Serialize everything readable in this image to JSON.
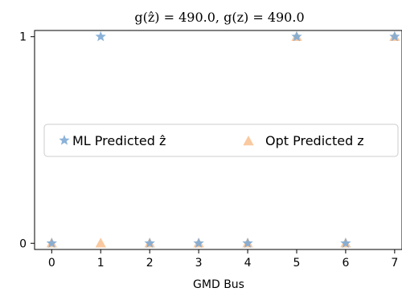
{
  "chart_data": {
    "type": "scatter",
    "title": "g(ẑ) = 490.0,    g(z) = 490.0",
    "xlabel": "GMD Bus",
    "ylabel": "",
    "xlim": [
      -0.35,
      7.15
    ],
    "ylim": [
      -0.03,
      1.03
    ],
    "xticks": [
      "0",
      "1",
      "2",
      "3",
      "4",
      "5",
      "6",
      "7"
    ],
    "yticks": [
      "0",
      "1"
    ],
    "grid": false,
    "legend_position": "center",
    "series": [
      {
        "name": "ML Predicted ẑ",
        "marker": "star",
        "color": "#7eaad4",
        "x": [
          0,
          1,
          2,
          3,
          4,
          5,
          6,
          7
        ],
        "y": [
          0,
          1,
          0,
          0,
          0,
          1,
          0,
          1
        ]
      },
      {
        "name": "Opt Predicted z",
        "marker": "triangle",
        "color": "#f9c08f",
        "x": [
          0,
          1,
          2,
          3,
          4,
          5,
          6,
          7
        ],
        "y": [
          0,
          0,
          0,
          0,
          0,
          1,
          0,
          1
        ]
      }
    ]
  }
}
